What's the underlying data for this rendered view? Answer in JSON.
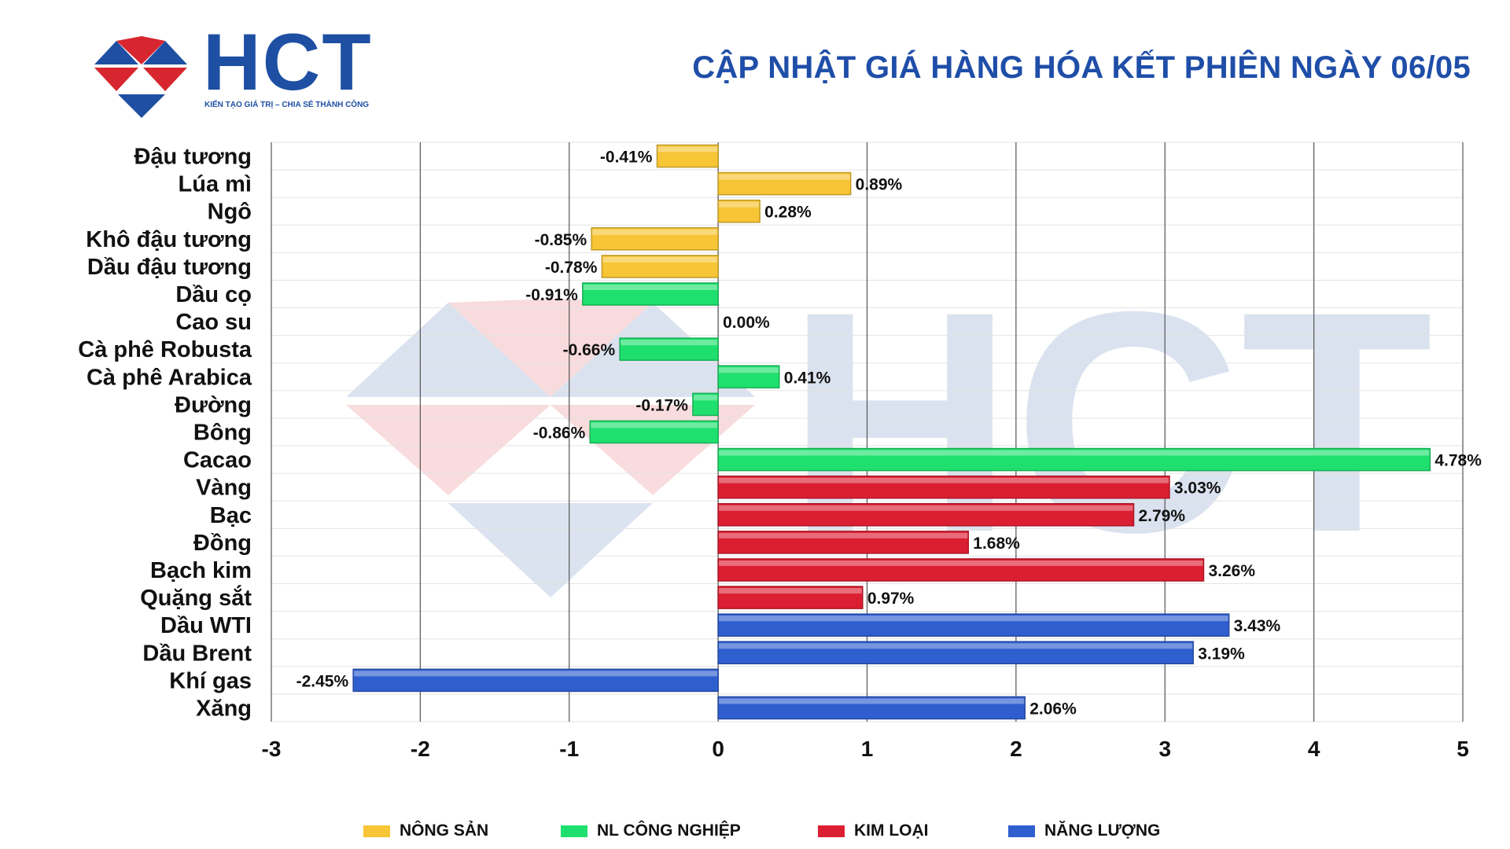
{
  "header": {
    "logo_text": "HCT",
    "logo_tagline": "KIẾN TẠO GIÁ TRỊ – CHIA SẺ THÀNH CÔNG",
    "title": "CẬP NHẬT GIÁ HÀNG HÓA KẾT PHIÊN NGÀY 06/05"
  },
  "colors": {
    "nong_san": "#f7c535",
    "nl_cong_nghiep": "#1fe06e",
    "kim_loai": "#dc1e32",
    "nang_luong": "#2f5fcf",
    "brand_blue": "#1e4fa3",
    "brand_red": "#d7262f"
  },
  "legend": [
    {
      "label": "NÔNG SẢN",
      "group": "nong_san"
    },
    {
      "label": "NL CÔNG NGHIỆP",
      "group": "nl_cong_nghiep"
    },
    {
      "label": "KIM LOẠI",
      "group": "kim_loai"
    },
    {
      "label": "NĂNG LƯỢNG",
      "group": "nang_luong"
    }
  ],
  "chart_data": {
    "type": "bar",
    "orientation": "horizontal",
    "title": "CẬP NHẬT GIÁ HÀNG HÓA KẾT PHIÊN NGÀY 06/05",
    "xlim": [
      -3,
      5
    ],
    "xticks": [
      "-3",
      "-2",
      "-1",
      "0",
      "1",
      "2",
      "3",
      "4",
      "5"
    ],
    "grid": "vertical",
    "legend_position": "bottom",
    "categories": [
      "Đậu tương",
      "Lúa mì",
      "Ngô",
      "Khô đậu tương",
      "Dầu đậu tương",
      "Dầu cọ",
      "Cao su",
      "Cà phê Robusta",
      "Cà phê Arabica",
      "Đường",
      "Bông",
      "Cacao",
      "Vàng",
      "Bạc",
      "Đồng",
      "Bạch kim",
      "Quặng sắt",
      "Dầu WTI",
      "Dầu Brent",
      "Khí gas",
      "Xăng"
    ],
    "values": [
      -0.41,
      0.89,
      0.28,
      -0.85,
      -0.78,
      -0.91,
      0.0,
      -0.66,
      0.41,
      -0.17,
      -0.86,
      4.78,
      3.03,
      2.79,
      1.68,
      3.26,
      0.97,
      3.43,
      3.19,
      -2.45,
      2.06
    ],
    "value_labels": [
      "-0.41%",
      "0.89%",
      "0.28%",
      "-0.85%",
      "-0.78%",
      "-0.91%",
      "0.00%",
      "-0.66%",
      "0.41%",
      "-0.17%",
      "-0.86%",
      "4.78%",
      "3.03%",
      "2.79%",
      "1.68%",
      "3.26%",
      "0.97%",
      "3.43%",
      "3.19%",
      "-2.45%",
      "2.06%"
    ],
    "groups": [
      "nong_san",
      "nong_san",
      "nong_san",
      "nong_san",
      "nong_san",
      "nl_cong_nghiep",
      "nl_cong_nghiep",
      "nl_cong_nghiep",
      "nl_cong_nghiep",
      "nl_cong_nghiep",
      "nl_cong_nghiep",
      "nl_cong_nghiep",
      "kim_loai",
      "kim_loai",
      "kim_loai",
      "kim_loai",
      "kim_loai",
      "nang_luong",
      "nang_luong",
      "nang_luong",
      "nang_luong"
    ]
  }
}
